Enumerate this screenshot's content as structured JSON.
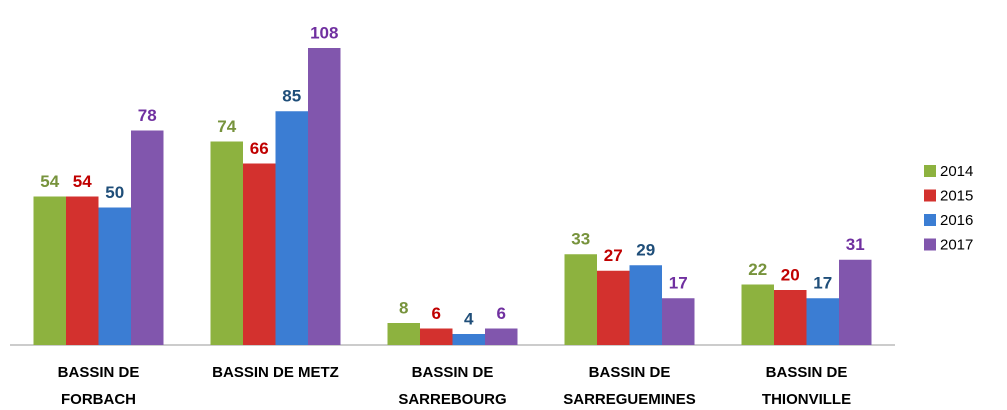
{
  "chart_data": {
    "type": "bar",
    "categories": [
      "BASSIN DE\nFORBACH",
      "BASSIN DE METZ",
      "BASSIN DE\nSARREBOURG",
      "BASSIN DE\nSARREGUEMINES",
      "BASSIN DE\nTHIONVILLE"
    ],
    "series": [
      {
        "name": "2014",
        "color": "#8db23f",
        "label_color": "#77933c",
        "values": [
          54,
          74,
          8,
          33,
          22
        ]
      },
      {
        "name": "2015",
        "color": "#d3312e",
        "label_color": "#c00000",
        "values": [
          54,
          66,
          6,
          27,
          20
        ]
      },
      {
        "name": "2016",
        "color": "#3b7dd3",
        "label_color": "#1f4e79",
        "values": [
          50,
          85,
          4,
          29,
          17
        ]
      },
      {
        "name": "2017",
        "color": "#8156ad",
        "label_color": "#7030a0",
        "values": [
          78,
          108,
          6,
          17,
          31
        ]
      }
    ],
    "legend": "right"
  }
}
